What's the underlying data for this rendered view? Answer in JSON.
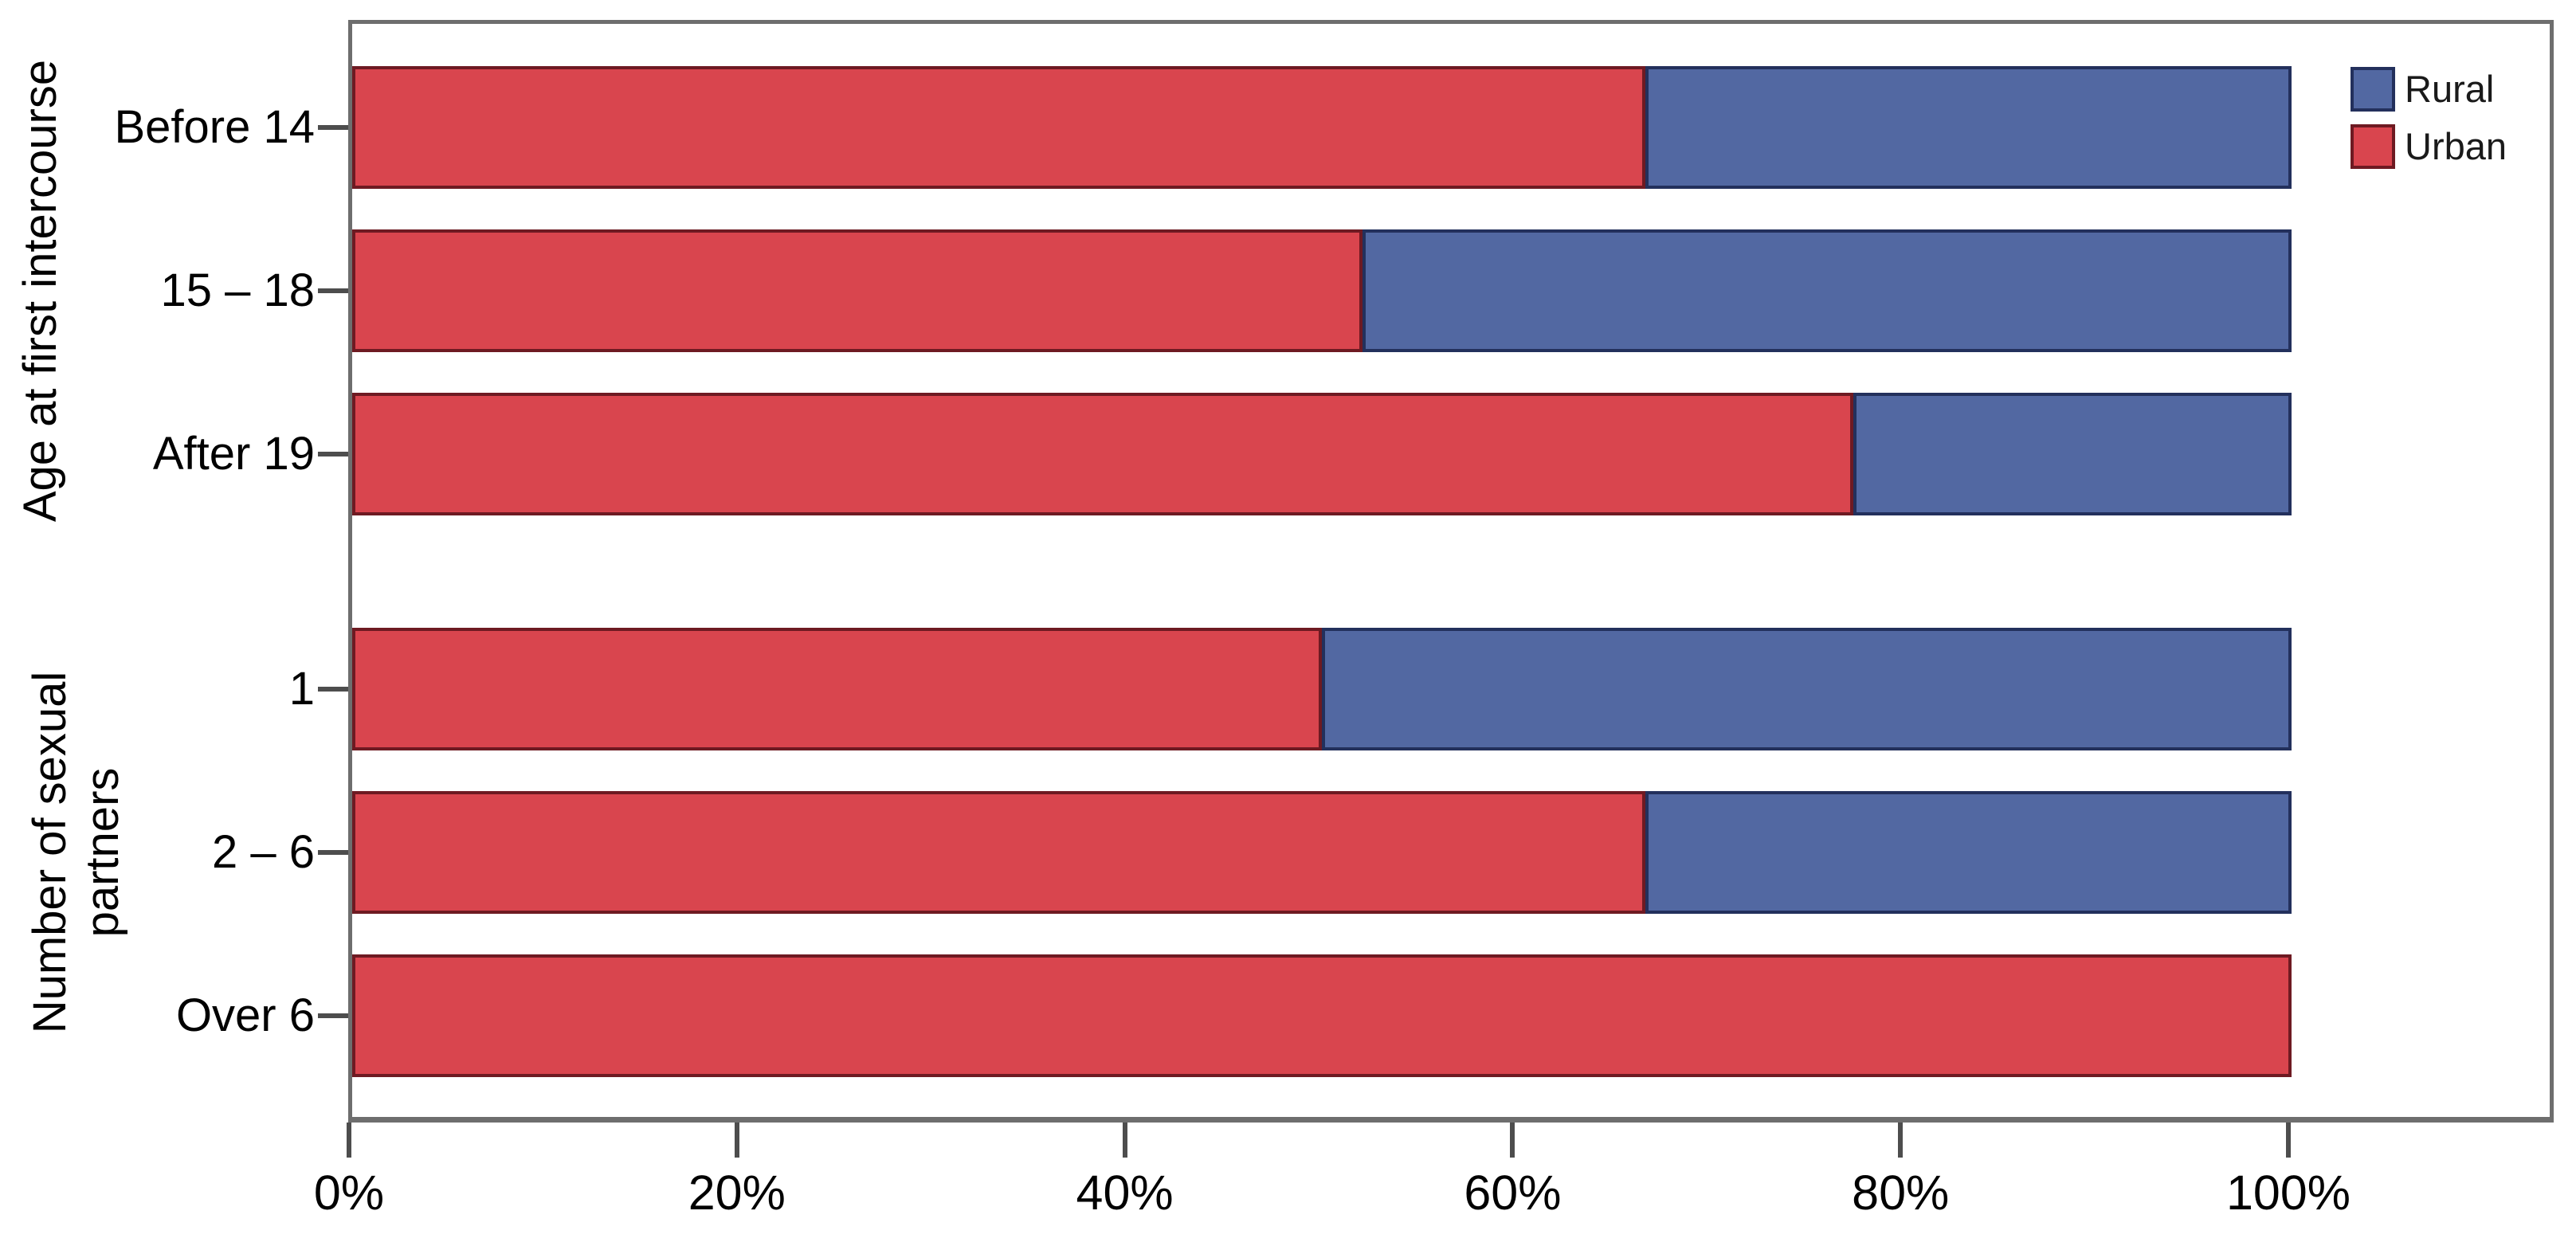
{
  "chart_data": {
    "type": "bar",
    "subtype": "horizontal-100pct-stacked",
    "title": "",
    "xlabel": "",
    "ylabel": "",
    "xlim": [
      0,
      100
    ],
    "x_tick_labels": [
      "0%",
      "20%",
      "40%",
      "60%",
      "80%",
      "100%"
    ],
    "grid": false,
    "legend_position": "top-right-inside",
    "groups": [
      {
        "label": "Age at first intercourse",
        "categories": [
          "Before 14",
          "15 – 18",
          "After 19"
        ]
      },
      {
        "label": "Number of sexual partners",
        "categories": [
          "1",
          "2 – 6",
          "Over 6"
        ]
      }
    ],
    "categories": [
      "Before 14",
      "15 – 18",
      "After 19",
      "1",
      "2 – 6",
      "Over 6"
    ],
    "series": [
      {
        "name": "Rural",
        "fill_color": "#5268a2",
        "border_color": "#23305c",
        "values": [
          33.3,
          47.9,
          22.6,
          50.0,
          33.3,
          0.0
        ]
      },
      {
        "name": "Urban",
        "fill_color": "#d9454e",
        "border_color": "#6e1a22",
        "values": [
          66.7,
          52.1,
          77.4,
          50.0,
          66.7,
          100.0
        ]
      }
    ],
    "stack_order_left_to_right": [
      "Urban",
      "Rural"
    ],
    "frame_color": "#6e6e6e",
    "tick_color": "#4d4d4d",
    "text_color": "#000000"
  }
}
